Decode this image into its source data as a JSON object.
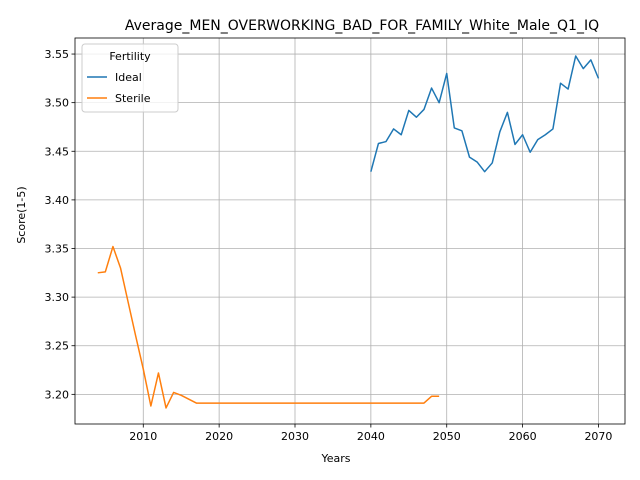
{
  "chart_data": {
    "type": "line",
    "title": "Average_MEN_OVERWORKING_BAD_FOR_FAMILY_White_Male_Q1_IQ",
    "xlabel": "Years",
    "ylabel": "Score(1-5)",
    "xlim": [
      2001,
      2073.5
    ],
    "ylim": [
      3.1695,
      3.5665
    ],
    "xticks": [
      2010,
      2020,
      2030,
      2040,
      2050,
      2060,
      2070
    ],
    "yticks": [
      3.2,
      3.25,
      3.3,
      3.35,
      3.4,
      3.45,
      3.5,
      3.55
    ],
    "grid": true,
    "legend": {
      "title": "Fertility",
      "placement": "upper left"
    },
    "series": [
      {
        "name": "Ideal",
        "color": "#1f77b4",
        "x": [
          2040,
          2041,
          2042,
          2043,
          2044,
          2045,
          2046,
          2047,
          2048,
          2049,
          2050,
          2051,
          2052,
          2053,
          2054,
          2055,
          2056,
          2057,
          2058,
          2059,
          2060,
          2061,
          2062,
          2063,
          2064,
          2065,
          2066,
          2067,
          2068,
          2069,
          2070
        ],
        "y": [
          3.429,
          3.458,
          3.46,
          3.473,
          3.467,
          3.492,
          3.485,
          3.493,
          3.515,
          3.5,
          3.53,
          3.474,
          3.471,
          3.444,
          3.439,
          3.429,
          3.438,
          3.47,
          3.49,
          3.457,
          3.467,
          3.449,
          3.462,
          3.467,
          3.473,
          3.52,
          3.514,
          3.548,
          3.535,
          3.544,
          3.525
        ]
      },
      {
        "name": "Sterile",
        "color": "#ff7f0e",
        "x": [
          2004,
          2005,
          2006,
          2007,
          2008,
          2009,
          2010,
          2011,
          2012,
          2013,
          2014,
          2015,
          2016,
          2017,
          2018,
          2019,
          2020,
          2021,
          2022,
          2023,
          2024,
          2025,
          2026,
          2027,
          2028,
          2029,
          2030,
          2031,
          2032,
          2033,
          2034,
          2035,
          2036,
          2037,
          2038,
          2039,
          2040,
          2041,
          2042,
          2043,
          2044,
          2045,
          2046,
          2047,
          2048,
          2049
        ],
        "y": [
          3.325,
          3.326,
          3.352,
          3.33,
          3.295,
          3.26,
          3.226,
          3.188,
          3.222,
          3.186,
          3.202,
          3.199,
          3.195,
          3.191,
          3.191,
          3.191,
          3.191,
          3.191,
          3.191,
          3.191,
          3.191,
          3.191,
          3.191,
          3.191,
          3.191,
          3.191,
          3.191,
          3.191,
          3.191,
          3.191,
          3.191,
          3.191,
          3.191,
          3.191,
          3.191,
          3.191,
          3.191,
          3.191,
          3.191,
          3.191,
          3.191,
          3.191,
          3.191,
          3.191,
          3.198,
          3.198
        ]
      }
    ]
  }
}
